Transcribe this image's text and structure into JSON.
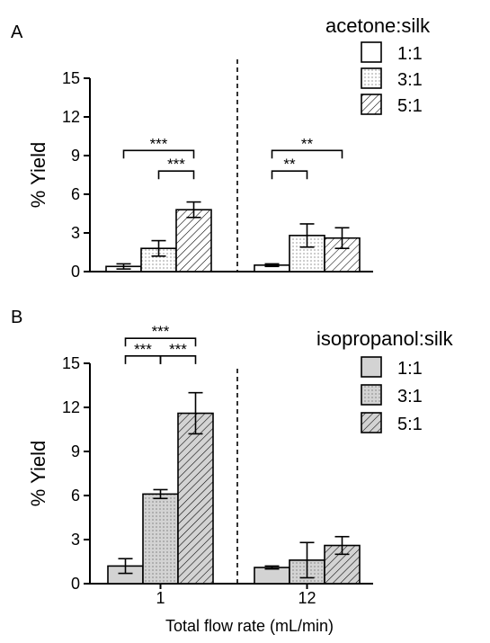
{
  "chart_data": [
    {
      "type": "bar",
      "panel": "A",
      "legend_title": "acetone:silk",
      "ylabel": "% Yield",
      "xlabel": "",
      "ylim": [
        0,
        15
      ],
      "yticks": [
        "0",
        "3",
        "6",
        "9",
        "12",
        "15"
      ],
      "categories": [
        "1",
        "12"
      ],
      "show_xticklabels": false,
      "colors": {
        "fill": "#ffffff",
        "hatch": "#000000"
      },
      "series": [
        {
          "name": "1:1",
          "pattern": "empty",
          "values": [
            0.4,
            0.5
          ],
          "errors": [
            0.2,
            0.1
          ]
        },
        {
          "name": "3:1",
          "pattern": "dots",
          "values": [
            1.8,
            2.8
          ],
          "errors": [
            0.6,
            0.9
          ]
        },
        {
          "name": "5:1",
          "pattern": "hatch",
          "values": [
            4.8,
            2.6
          ],
          "errors": [
            0.6,
            0.8
          ]
        }
      ],
      "significance": [
        {
          "category": 0,
          "from": 0,
          "to": 2,
          "label": "***",
          "y": 9.4
        },
        {
          "category": 0,
          "from": 1,
          "to": 2,
          "label": "***",
          "y": 7.8
        },
        {
          "category": 1,
          "from": 0,
          "to": 2,
          "label": "**",
          "y": 9.4
        },
        {
          "category": 1,
          "from": 0,
          "to": 1,
          "label": "**",
          "y": 7.8
        }
      ]
    },
    {
      "type": "bar",
      "panel": "B",
      "legend_title": "isopropanol:silk",
      "ylabel": "% Yield",
      "xlabel": "Total flow rate (mL/min)",
      "ylim": [
        0,
        15
      ],
      "yticks": [
        "0",
        "3",
        "6",
        "9",
        "12",
        "15"
      ],
      "categories": [
        "1",
        "12"
      ],
      "show_xticklabels": true,
      "colors": {
        "fill": "#d3d3d3",
        "hatch": "#000000"
      },
      "series": [
        {
          "name": "1:1",
          "pattern": "empty",
          "values": [
            1.2,
            1.1
          ],
          "errors": [
            0.5,
            0.1
          ]
        },
        {
          "name": "3:1",
          "pattern": "dots",
          "values": [
            6.1,
            1.6
          ],
          "errors": [
            0.3,
            1.2
          ]
        },
        {
          "name": "5:1",
          "pattern": "hatch",
          "values": [
            11.6,
            2.6
          ],
          "errors": [
            1.4,
            0.6
          ]
        }
      ],
      "significance": [
        {
          "category": 0,
          "from": 0,
          "to": 2,
          "label": "***",
          "y": 16.7
        },
        {
          "category": 0,
          "from": 0,
          "to": 1,
          "label": "***",
          "y": 15.5
        },
        {
          "category": 0,
          "from": 1,
          "to": 2,
          "label": "***",
          "y": 15.5
        }
      ]
    }
  ]
}
